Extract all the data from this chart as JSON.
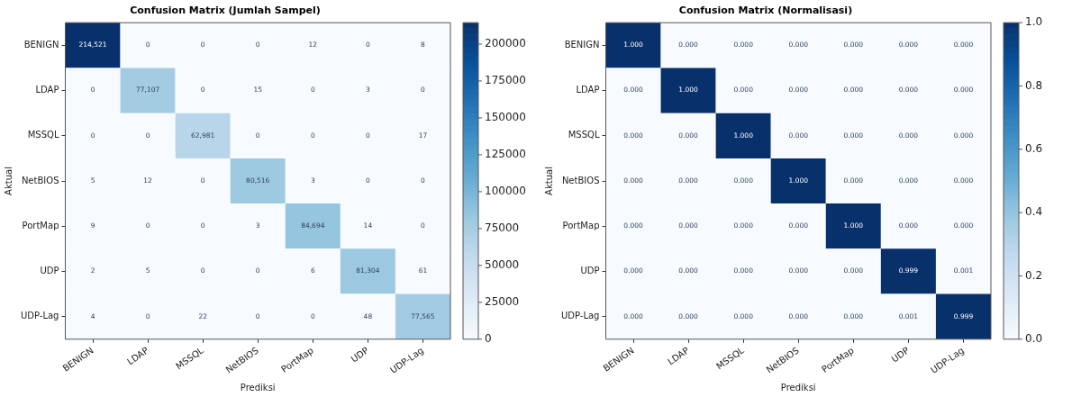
{
  "chart_data": [
    {
      "type": "heatmap",
      "title": "Confusion Matrix (Jumlah Sampel)",
      "xlabel": "Prediksi",
      "ylabel": "Aktual",
      "categories": [
        "BENIGN",
        "LDAP",
        "MSSQL",
        "NetBIOS",
        "PortMap",
        "UDP",
        "UDP-Lag"
      ],
      "y_categories": [
        "BENIGN",
        "LDAP",
        "MSSQL",
        "NetBIOS",
        "PortMap",
        "UDP",
        "UDP-Lag"
      ],
      "cells": [
        [
          214521,
          0,
          0,
          0,
          12,
          0,
          8
        ],
        [
          0,
          77107,
          0,
          15,
          0,
          3,
          0
        ],
        [
          0,
          0,
          62981,
          0,
          0,
          0,
          17
        ],
        [
          5,
          12,
          0,
          80516,
          3,
          0,
          0
        ],
        [
          9,
          0,
          0,
          3,
          84694,
          14,
          0
        ],
        [
          2,
          5,
          0,
          0,
          6,
          81304,
          61
        ],
        [
          4,
          0,
          22,
          0,
          0,
          48,
          77565
        ]
      ],
      "cell_labels": [
        [
          "214,521",
          "0",
          "0",
          "0",
          "12",
          "0",
          "8"
        ],
        [
          "0",
          "77,107",
          "0",
          "15",
          "0",
          "3",
          "0"
        ],
        [
          "0",
          "0",
          "62,981",
          "0",
          "0",
          "0",
          "17"
        ],
        [
          "5",
          "12",
          "0",
          "80,516",
          "3",
          "0",
          "0"
        ],
        [
          "9",
          "0",
          "0",
          "3",
          "84,694",
          "14",
          "0"
        ],
        [
          "2",
          "5",
          "0",
          "0",
          "6",
          "81,304",
          "61"
        ],
        [
          "4",
          "0",
          "22",
          "0",
          "0",
          "48",
          "77,565"
        ]
      ],
      "clim": [
        0,
        214521
      ],
      "cticks": [
        0,
        25000,
        50000,
        75000,
        100000,
        125000,
        150000,
        175000,
        200000
      ]
    },
    {
      "type": "heatmap",
      "title": "Confusion Matrix (Normalisasi)",
      "xlabel": "Prediksi",
      "ylabel": "Aktual",
      "categories": [
        "BENIGN",
        "LDAP",
        "MSSQL",
        "NetBIOS",
        "PortMap",
        "UDP",
        "UDP-Lag"
      ],
      "y_categories": [
        "BENIGN",
        "LDAP",
        "MSSQL",
        "NetBIOS",
        "PortMap",
        "UDP",
        "UDP-Lag"
      ],
      "cells": [
        [
          1,
          0,
          0,
          0,
          0,
          0,
          0
        ],
        [
          0,
          1,
          0,
          0,
          0,
          0,
          0
        ],
        [
          0,
          0,
          1,
          0,
          0,
          0,
          0
        ],
        [
          0,
          0,
          0,
          1,
          0,
          0,
          0
        ],
        [
          0,
          0,
          0,
          0,
          1,
          0,
          0
        ],
        [
          0,
          0,
          0,
          0,
          0,
          0.999,
          0.001
        ],
        [
          0,
          0,
          0,
          0,
          0,
          0.001,
          0.999
        ]
      ],
      "cell_labels": [
        [
          "1.000",
          "0.000",
          "0.000",
          "0.000",
          "0.000",
          "0.000",
          "0.000"
        ],
        [
          "0.000",
          "1.000",
          "0.000",
          "0.000",
          "0.000",
          "0.000",
          "0.000"
        ],
        [
          "0.000",
          "0.000",
          "1.000",
          "0.000",
          "0.000",
          "0.000",
          "0.000"
        ],
        [
          "0.000",
          "0.000",
          "0.000",
          "1.000",
          "0.000",
          "0.000",
          "0.000"
        ],
        [
          "0.000",
          "0.000",
          "0.000",
          "0.000",
          "1.000",
          "0.000",
          "0.000"
        ],
        [
          "0.000",
          "0.000",
          "0.000",
          "0.000",
          "0.000",
          "0.999",
          "0.001"
        ],
        [
          "0.000",
          "0.000",
          "0.000",
          "0.000",
          "0.000",
          "0.001",
          "0.999"
        ]
      ],
      "clim": [
        0,
        1
      ],
      "cticks": [
        {
          "value": 0,
          "label": "0.0"
        },
        {
          "value": 0.2,
          "label": "0.2"
        },
        {
          "value": 0.4,
          "label": "0.4"
        },
        {
          "value": 0.6,
          "label": "0.6"
        },
        {
          "value": 0.8,
          "label": "0.8"
        },
        {
          "value": 1,
          "label": "1.0"
        }
      ]
    }
  ]
}
